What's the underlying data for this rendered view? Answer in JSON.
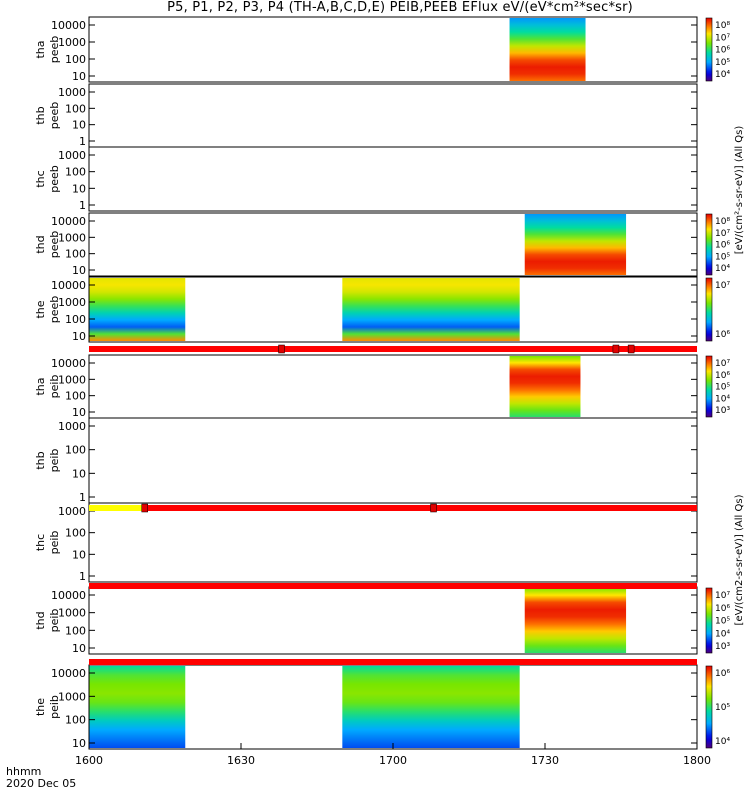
{
  "chart_data": {
    "type": "heatmap",
    "title": "P5, P1, P2, P3, P4 (TH-A,B,C,D,E) PEIB,PEEB EFlux eV/(eV*cm²*sec*sr)",
    "time_label": "hhmm",
    "date_label": "2020 Dec 05",
    "x_range": [
      0,
      120
    ],
    "x_ticks": [
      {
        "label": "1600",
        "minutes": 0
      },
      {
        "label": "1630",
        "minutes": 30
      },
      {
        "label": "1700",
        "minutes": 60
      },
      {
        "label": "1730",
        "minutes": 90
      },
      {
        "label": "1800",
        "minutes": 120
      }
    ],
    "colorbar_label_a": "[eV/(cm²-s-sr-eV)] (All Qs)",
    "colorbar_label_b": "[eV/(cm2-s-sr-eV)] (All Qs)",
    "panels": [
      {
        "probe": "tha",
        "product": "peeb",
        "ylabel_probe": "tha",
        "ylabel_prod": "peeb",
        "yticks": [
          "10",
          "100",
          "1000",
          "10000"
        ],
        "ymin_label": "",
        "colorbar": [
          "10⁴",
          "10⁵",
          "10⁶",
          "10⁷",
          "10⁸"
        ],
        "data_intervals": [
          [
            83,
            98
          ]
        ]
      },
      {
        "probe": "thb",
        "product": "peeb",
        "ylabel_probe": "thb",
        "ylabel_prod": "peeb",
        "yticks": [
          "1",
          "10",
          "100",
          "1000"
        ],
        "ymin_label": "1",
        "colorbar": [],
        "data_intervals": []
      },
      {
        "probe": "thc",
        "product": "peeb",
        "ylabel_probe": "thc",
        "ylabel_prod": "peeb",
        "yticks": [
          "1",
          "10",
          "100",
          "1000"
        ],
        "ymin_label": "1",
        "colorbar": [],
        "data_intervals": []
      },
      {
        "probe": "thd",
        "product": "peeb",
        "ylabel_probe": "thd",
        "ylabel_prod": "peeb",
        "yticks": [
          "10",
          "100",
          "1000",
          "10000"
        ],
        "ymin_label": "",
        "colorbar": [
          "10⁴",
          "10⁵",
          "10⁶",
          "10⁷",
          "10⁸"
        ],
        "data_intervals": [
          [
            86,
            106
          ]
        ]
      },
      {
        "probe": "the",
        "product": "peeb",
        "ylabel_probe": "the",
        "ylabel_prod": "peeb",
        "yticks": [
          "10",
          "100",
          "1000",
          "10000"
        ],
        "ymin_label": "",
        "colorbar": [
          "10⁶",
          "10⁷"
        ],
        "data_intervals": [
          [
            0,
            19
          ],
          [
            50,
            85
          ]
        ]
      },
      {
        "probe": "tha",
        "product": "peib",
        "ylabel_probe": "tha",
        "ylabel_prod": "peib",
        "yticks": [
          "10",
          "100",
          "1000",
          "10000"
        ],
        "ymin_label": "",
        "colorbar": [
          "10³",
          "10⁴",
          "10⁵",
          "10⁶",
          "10⁷"
        ],
        "data_intervals": [
          [
            83,
            97
          ]
        ]
      },
      {
        "probe": "thb",
        "product": "peib",
        "ylabel_probe": "thb",
        "ylabel_prod": "peib",
        "yticks": [
          "1",
          "10",
          "100",
          "1000"
        ],
        "ymin_label": "1",
        "colorbar": [],
        "data_intervals": []
      },
      {
        "probe": "thc",
        "product": "peib",
        "ylabel_probe": "thc",
        "ylabel_prod": "peib",
        "yticks": [
          "1",
          "10",
          "100",
          "1000"
        ],
        "ymin_label": "1",
        "colorbar": [],
        "data_intervals": []
      },
      {
        "probe": "thd",
        "product": "peib",
        "ylabel_probe": "thd",
        "ylabel_prod": "peib",
        "yticks": [
          "10",
          "100",
          "1000",
          "10000"
        ],
        "ymin_label": "",
        "colorbar": [
          "10³",
          "10⁴",
          "10⁵",
          "10⁶",
          "10⁷"
        ],
        "data_intervals": [
          [
            86,
            106
          ]
        ]
      },
      {
        "probe": "the",
        "product": "peib",
        "ylabel_probe": "the",
        "ylabel_prod": "peib",
        "yticks": [
          "10",
          "100",
          "1000",
          "10000"
        ],
        "ymin_label": "",
        "colorbar": [
          "10⁴",
          "10⁵",
          "10⁶"
        ],
        "data_intervals": [
          [
            0,
            19
          ],
          [
            50,
            85
          ]
        ]
      }
    ],
    "mode_bars": [
      {
        "after_panel": 4,
        "segments": [
          {
            "from": 0,
            "to": 120,
            "color": "#ff0000"
          }
        ],
        "markers_minutes": [
          38,
          104,
          107
        ]
      },
      {
        "after_panel": 6,
        "segments": [
          {
            "from": 0,
            "to": 11,
            "color": "#ffff00"
          },
          {
            "from": 11,
            "to": 120,
            "color": "#ff0000"
          }
        ],
        "markers_minutes": [
          11,
          68
        ]
      },
      {
        "after_panel": 7,
        "segments": [
          {
            "from": 0,
            "to": 120,
            "color": "#ff0000"
          }
        ],
        "markers_minutes": []
      },
      {
        "after_panel": 8,
        "segments": [
          {
            "from": 0,
            "to": 120,
            "color": "#ff0000"
          }
        ],
        "markers_minutes": []
      }
    ]
  }
}
